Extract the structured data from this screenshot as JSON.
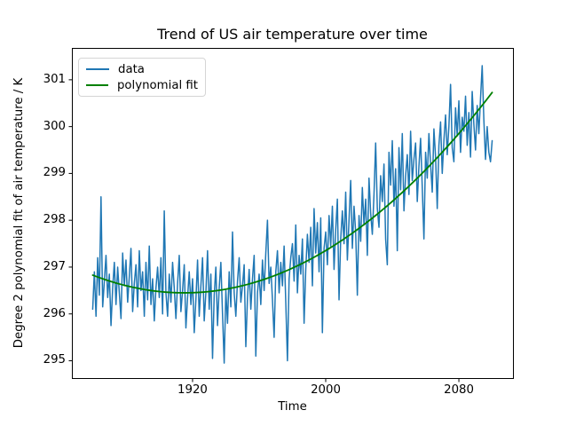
{
  "chart_data": {
    "type": "line",
    "title": "Trend of US air temperature over time",
    "xlabel": "Time",
    "ylabel": "Degree 2 polynomial fit of air temperature / K",
    "xlim": [
      1847.5,
      2112.5
    ],
    "ylim": [
      294.63,
      301.68
    ],
    "x_ticks": [
      1920,
      2000,
      2080
    ],
    "y_ticks": [
      295,
      296,
      297,
      298,
      299,
      300,
      301
    ],
    "grid": false,
    "legend_position": "upper left",
    "legend": {
      "items": [
        {
          "label": "data",
          "color": "#1f77b4"
        },
        {
          "label": "polynomial fit",
          "color": "#008000"
        }
      ]
    },
    "series": [
      {
        "name": "data",
        "color": "#1f77b4",
        "line_width": 1.5,
        "x_start": 1860,
        "x_step": 1,
        "values": [
          296.1,
          296.9,
          295.95,
          297.2,
          296.4,
          298.5,
          296.15,
          296.7,
          297.25,
          296.35,
          296.85,
          295.75,
          296.55,
          297.1,
          296.2,
          297.0,
          296.45,
          295.9,
          297.3,
          296.6,
          297.15,
          296.25,
          296.8,
          297.4,
          296.05,
          296.65,
          297.05,
          296.15,
          297.35,
          296.5,
          296.9,
          295.95,
          297.1,
          296.3,
          297.45,
          296.2,
          296.75,
          295.85,
          296.55,
          297.0,
          296.35,
          297.2,
          296.0,
          298.2,
          296.45,
          295.95,
          296.85,
          296.25,
          297.1,
          296.55,
          295.9,
          296.65,
          297.25,
          296.05,
          296.5,
          297.05,
          295.7,
          296.35,
          296.9,
          296.2,
          296.75,
          295.6,
          296.3,
          297.15,
          295.95,
          296.6,
          297.2,
          295.85,
          296.45,
          297.35,
          296.1,
          296.85,
          295.05,
          296.4,
          297.0,
          295.75,
          296.55,
          297.1,
          296.0,
          294.95,
          296.5,
          295.8,
          296.9,
          296.15,
          297.75,
          296.45,
          295.95,
          296.7,
          297.2,
          296.25,
          296.6,
          297.05,
          295.3,
          296.35,
          296.95,
          296.1,
          296.75,
          297.25,
          295.1,
          296.45,
          296.85,
          296.2,
          297.15,
          296.5,
          297.3,
          298.0,
          296.65,
          297.0,
          296.3,
          295.5,
          296.9,
          297.35,
          296.45,
          297.1,
          296.6,
          297.45,
          296.25,
          295.0,
          296.75,
          297.2,
          297.5,
          296.7,
          297.9,
          296.45,
          297.25,
          296.85,
          297.6,
          295.8,
          296.95,
          297.7,
          297.1,
          297.85,
          296.6,
          298.25,
          297.3,
          297.95,
          296.9,
          298.05,
          295.6,
          297.4,
          297.75,
          297.05,
          298.1,
          297.45,
          298.3,
          296.95,
          297.8,
          298.45,
          296.3,
          297.6,
          298.2,
          297.5,
          298.6,
          297.15,
          298.0,
          298.85,
          297.4,
          298.3,
          297.75,
          296.4,
          298.1,
          297.55,
          298.7,
          297.9,
          298.45,
          297.25,
          298.9,
          298.15,
          297.7,
          298.55,
          299.65,
          298.25,
          297.85,
          298.95,
          298.4,
          299.2,
          297.6,
          297.05,
          299.45,
          298.75,
          299.7,
          298.3,
          299.1,
          297.35,
          299.55,
          298.65,
          299.85,
          298.2,
          298.95,
          299.4,
          298.55,
          299.9,
          298.85,
          299.3,
          299.65,
          298.4,
          299.15,
          299.75,
          298.7,
          297.6,
          299.45,
          298.9,
          299.85,
          299.2,
          298.6,
          299.95,
          299.35,
          298.25,
          299.6,
          300.1,
          299.0,
          299.7,
          300.25,
          299.4,
          300.0,
          300.9,
          299.55,
          299.25,
          300.4,
          299.8,
          300.55,
          299.45,
          300.2,
          299.9,
          300.65,
          299.6,
          300.3,
          299.35,
          300.75,
          300.05,
          299.5,
          300.45,
          299.85,
          300.6,
          301.3,
          300.15,
          299.3,
          300.0,
          299.45,
          299.25,
          299.7
        ]
      },
      {
        "name": "polynomial fit",
        "color": "#008000",
        "line_width": 1.8,
        "fit": {
          "degree": 2,
          "vertex_year": 1915,
          "vertex_value": 296.45,
          "a": 0.000125,
          "x_range": [
            1860,
            2100
          ],
          "value_at_start": 296.83,
          "value_at_end": 300.72
        }
      }
    ]
  }
}
